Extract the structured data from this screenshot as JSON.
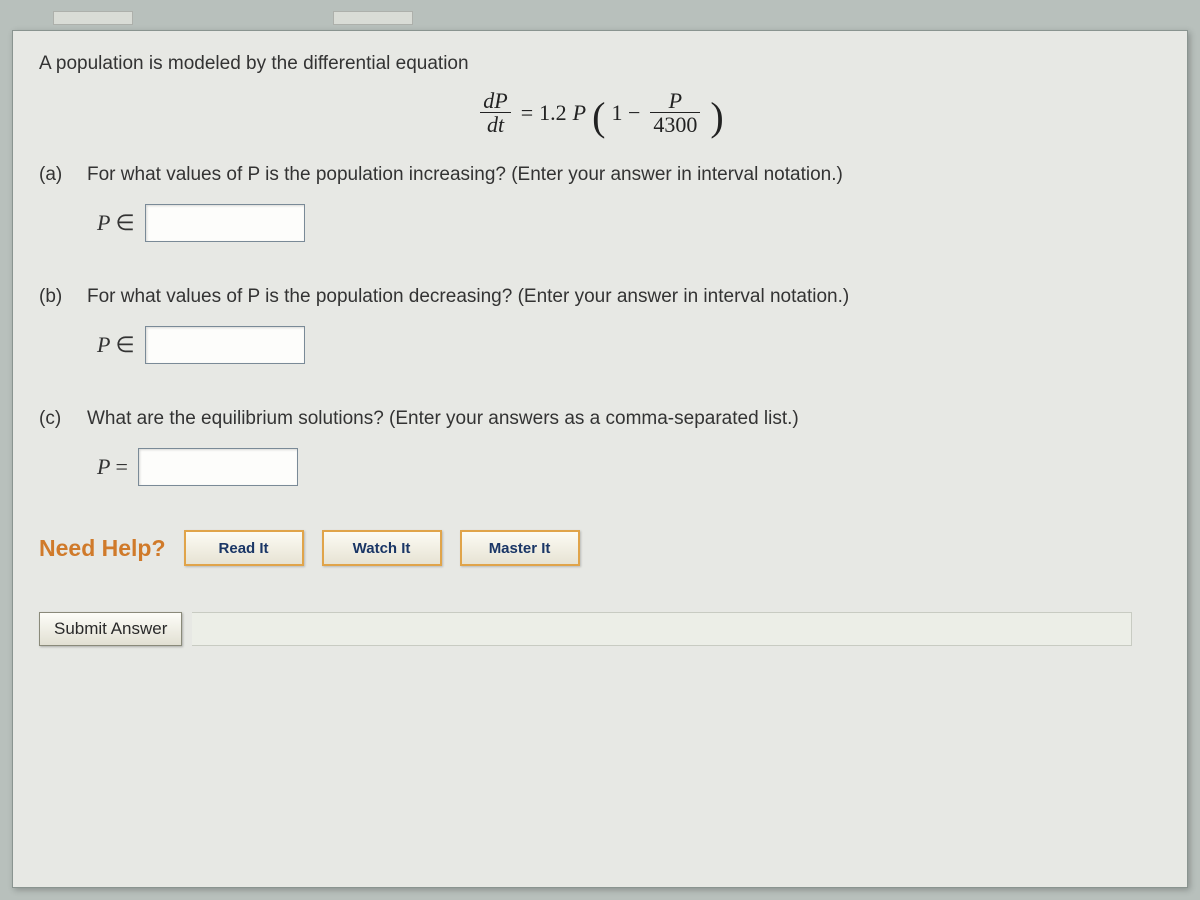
{
  "colors": {
    "page_bg": "#b8c0bc",
    "panel_bg": "#e7e8e4",
    "text": "#333333",
    "accent_orange": "#d07a2a",
    "button_border": "#e0a44a",
    "button_text": "#1a3666",
    "input_border": "#7a8a97"
  },
  "font_sizes_pt": {
    "body": 14,
    "equation": 16,
    "need_help": 17,
    "button": 11
  },
  "intro": "A population is modeled by the differential equation",
  "equation": {
    "lhs_num": "dP",
    "lhs_den": "dt",
    "equals": " = ",
    "coef": "1.2",
    "varP": "P",
    "one_minus": "1 −",
    "rhs_num": "P",
    "rhs_den": "4300"
  },
  "parts": {
    "a": {
      "tag": "(a)",
      "text": "For what values of P is the population increasing? (Enter your answer in interval notation.)",
      "label_var": "P",
      "label_rel": "∈"
    },
    "b": {
      "tag": "(b)",
      "text": "For what values of P is the population decreasing? (Enter your answer in interval notation.)",
      "label_var": "P",
      "label_rel": "∈"
    },
    "c": {
      "tag": "(c)",
      "text": "What are the equilibrium solutions? (Enter your answers as a comma-separated list.)",
      "label_var": "P",
      "label_rel": "="
    }
  },
  "help": {
    "title": "Need Help?",
    "buttons": {
      "read": "Read It",
      "watch": "Watch It",
      "master": "Master It"
    }
  },
  "submit": "Submit Answer"
}
